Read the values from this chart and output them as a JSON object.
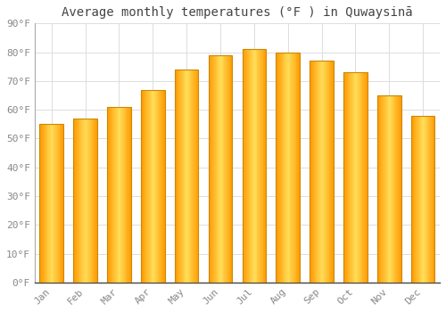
{
  "title": "Average monthly temperatures (°F ) in Quwaysinā",
  "months": [
    "Jan",
    "Feb",
    "Mar",
    "Apr",
    "May",
    "Jun",
    "Jul",
    "Aug",
    "Sep",
    "Oct",
    "Nov",
    "Dec"
  ],
  "values": [
    55,
    57,
    61,
    67,
    74,
    79,
    81,
    80,
    77,
    73,
    65,
    58
  ],
  "bar_color_center": "#FFD54F",
  "bar_color_edge": "#FFA000",
  "background_color": "#FFFFFF",
  "grid_color": "#DDDDDD",
  "text_color": "#888888",
  "ylim": [
    0,
    90
  ],
  "yticks": [
    0,
    10,
    20,
    30,
    40,
    50,
    60,
    70,
    80,
    90
  ],
  "title_fontsize": 10,
  "tick_fontsize": 8,
  "bar_width": 0.7
}
